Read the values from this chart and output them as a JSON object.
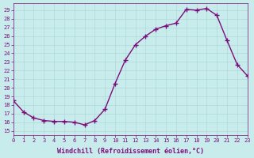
{
  "x": [
    0,
    1,
    2,
    3,
    4,
    5,
    6,
    7,
    8,
    9,
    10,
    11,
    12,
    13,
    14,
    15,
    16,
    17,
    18,
    19,
    20,
    21,
    22,
    23
  ],
  "y": [
    18.5,
    17.2,
    16.5,
    16.2,
    16.1,
    16.1,
    16.0,
    15.7,
    16.2,
    17.5,
    20.5,
    23.2,
    25.0,
    26.0,
    26.8,
    27.2,
    27.5,
    29.1,
    29.0,
    29.2,
    28.4,
    25.5,
    22.7,
    21.4
  ],
  "line_color": "#7b0d7b",
  "marker": "+",
  "marker_size": 4,
  "bg_color": "#c8ecec",
  "grid_color": "#b0d8d8",
  "xlabel": "Windchill (Refroidissement éolien,°C)",
  "ylabel_ticks": [
    15,
    16,
    17,
    18,
    19,
    20,
    21,
    22,
    23,
    24,
    25,
    26,
    27,
    28,
    29
  ],
  "xtick_labels": [
    "0",
    "1",
    "2",
    "3",
    "4",
    "5",
    "6",
    "7",
    "8",
    "9",
    "10",
    "11",
    "12",
    "13",
    "14",
    "15",
    "16",
    "17",
    "18",
    "19",
    "20",
    "21",
    "22",
    "23"
  ],
  "xlim": [
    0,
    23
  ],
  "ylim": [
    14.5,
    29.8
  ],
  "tick_color": "#7b0d7b",
  "label_color": "#7b0d7b",
  "tick_fontsize": 5,
  "xlabel_fontsize": 6,
  "linewidth": 1.0
}
